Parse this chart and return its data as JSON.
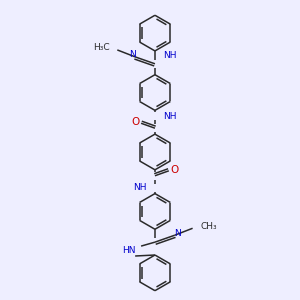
{
  "bg_color": "#eeeeff",
  "bond_color": "#2a2a2a",
  "n_color": "#0000cc",
  "o_color": "#cc0000",
  "font_size": 6.5,
  "lw": 1.1,
  "figsize": [
    3.0,
    3.0
  ],
  "dpi": 100,
  "xlim": [
    0,
    300
  ],
  "ylim": [
    0,
    300
  ]
}
